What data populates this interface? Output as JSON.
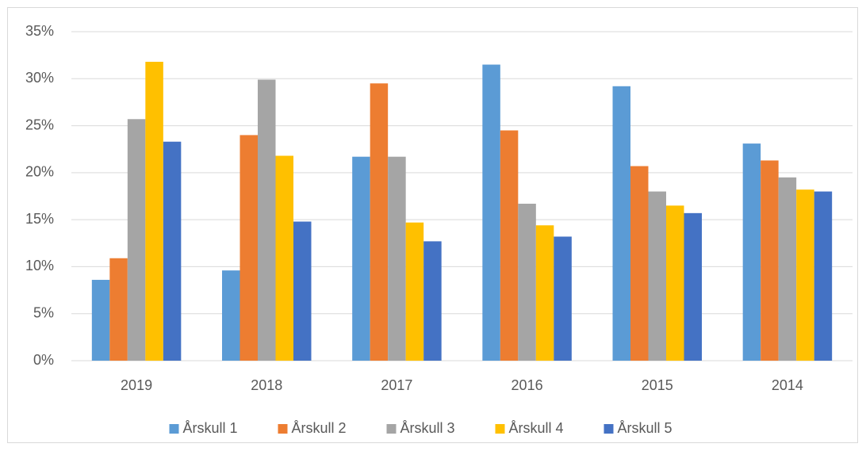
{
  "chart_data": {
    "type": "bar",
    "categories": [
      "2019",
      "2018",
      "2017",
      "2016",
      "2015",
      "2014"
    ],
    "series": [
      {
        "name": "Årskull 1",
        "color": "#5b9bd5",
        "values": [
          8.6,
          9.6,
          21.7,
          31.5,
          29.2,
          23.1
        ]
      },
      {
        "name": "Årskull 2",
        "color": "#ed7d31",
        "values": [
          10.9,
          24.0,
          29.5,
          24.5,
          20.7,
          21.3
        ]
      },
      {
        "name": "Årskull 3",
        "color": "#a5a5a5",
        "values": [
          25.7,
          29.9,
          21.7,
          16.7,
          18.0,
          19.5
        ]
      },
      {
        "name": "Årskull 4",
        "color": "#ffc000",
        "values": [
          31.8,
          21.8,
          14.7,
          14.4,
          16.5,
          18.2
        ]
      },
      {
        "name": "Årskull 5",
        "color": "#4472c4",
        "values": [
          23.3,
          14.8,
          12.7,
          13.2,
          15.7,
          18.0
        ]
      }
    ],
    "ylim": [
      0,
      35
    ],
    "yticks": [
      {
        "value": 0,
        "label": "0%"
      },
      {
        "value": 5,
        "label": "5%"
      },
      {
        "value": 10,
        "label": "10%"
      },
      {
        "value": 15,
        "label": "15%"
      },
      {
        "value": 20,
        "label": "20%"
      },
      {
        "value": 25,
        "label": "25%"
      },
      {
        "value": 30,
        "label": "30%"
      },
      {
        "value": 35,
        "label": "35%"
      }
    ],
    "grid": true,
    "legend": "bottom"
  }
}
